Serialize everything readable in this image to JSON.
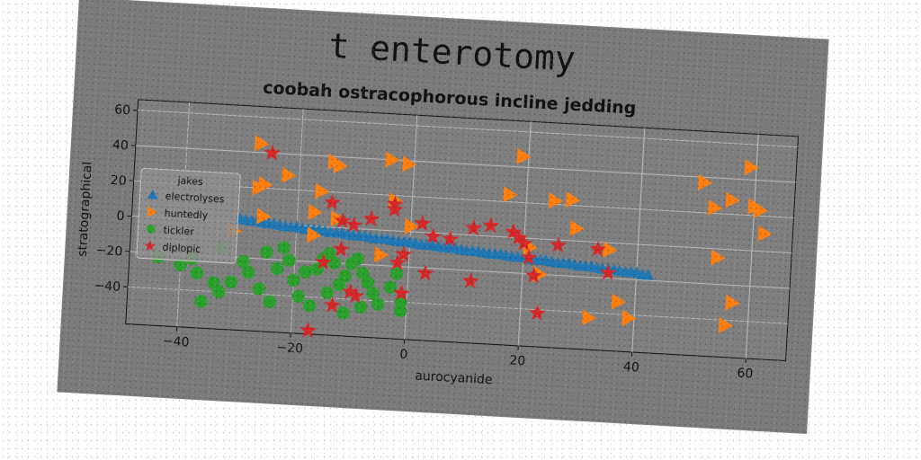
{
  "figure": {
    "title": "t enterotomy"
  },
  "chart_data": {
    "type": "scatter",
    "title": "coobah ostracophorous incline jedding",
    "xlabel": "aurocyanide",
    "ylabel": "stratographical",
    "xlim": [
      -49,
      67
    ],
    "ylim": [
      -61,
      66
    ],
    "xticks": [
      -40,
      -20,
      0,
      20,
      40,
      60
    ],
    "yticks": [
      -40,
      -20,
      0,
      20,
      40,
      60
    ],
    "grid": true,
    "legend": {
      "title": "jakes",
      "position": "center-left"
    },
    "series": [
      {
        "name": "electrolyses",
        "marker": "triangle-up",
        "color": "#1f77b4",
        "points": [
          [
            -30,
            2
          ],
          [
            -29,
            1.5
          ],
          [
            -28,
            1
          ],
          [
            -27,
            1
          ],
          [
            -26,
            0.5
          ],
          [
            -25,
            0
          ],
          [
            -24,
            0
          ],
          [
            -23,
            -0.5
          ],
          [
            -22,
            -1
          ],
          [
            -21,
            -1
          ],
          [
            -20,
            -1
          ],
          [
            -19,
            -1.5
          ],
          [
            -18,
            -2
          ],
          [
            -17,
            -2
          ],
          [
            -16,
            -2
          ],
          [
            -15,
            -2.5
          ],
          [
            -14,
            -3
          ],
          [
            -13,
            -3
          ],
          [
            -12,
            -3
          ],
          [
            -11,
            -3.5
          ],
          [
            -10,
            -4
          ],
          [
            -9,
            -4
          ],
          [
            -8,
            -4
          ],
          [
            -7,
            -4.5
          ],
          [
            -6,
            -5
          ],
          [
            -5,
            -5
          ],
          [
            -4,
            -5
          ],
          [
            -3,
            -5.5
          ],
          [
            -2,
            -6
          ],
          [
            -1,
            -6
          ],
          [
            0,
            -6
          ],
          [
            1,
            -6.5
          ],
          [
            2,
            -7
          ],
          [
            3,
            -7
          ],
          [
            4,
            -7
          ],
          [
            5,
            -7.5
          ],
          [
            6,
            -8
          ],
          [
            7,
            -8
          ],
          [
            8,
            -8
          ],
          [
            9,
            -8.5
          ],
          [
            10,
            -9
          ],
          [
            11,
            -9
          ],
          [
            12,
            -9
          ],
          [
            13,
            -9.5
          ],
          [
            14,
            -10
          ],
          [
            15,
            -10
          ],
          [
            16,
            -10
          ],
          [
            17,
            -10.5
          ],
          [
            18,
            -11
          ],
          [
            19,
            -11
          ],
          [
            20,
            -11
          ],
          [
            21,
            -11.5
          ],
          [
            22,
            -12
          ],
          [
            23,
            -12
          ],
          [
            24,
            -12
          ],
          [
            25,
            -12.5
          ],
          [
            26,
            -13
          ],
          [
            27,
            -13
          ],
          [
            28,
            -13
          ],
          [
            29,
            -13.5
          ],
          [
            30,
            -14
          ],
          [
            31,
            -14
          ],
          [
            32,
            -14
          ],
          [
            33,
            -14.5
          ],
          [
            34,
            -15
          ],
          [
            35,
            -15
          ],
          [
            36,
            -15
          ],
          [
            37,
            -15.5
          ],
          [
            38,
            -16
          ],
          [
            39,
            -16
          ],
          [
            40,
            -16
          ],
          [
            41,
            -17
          ],
          [
            42,
            -17
          ]
        ]
      },
      {
        "name": "huntedly",
        "marker": "triangle-right",
        "color": "#ff7f0e",
        "points": [
          [
            -27,
            45
          ],
          [
            -22,
            28
          ],
          [
            -26,
            22
          ],
          [
            -27,
            20
          ],
          [
            -16,
            20
          ],
          [
            -14,
            37
          ],
          [
            -13,
            35
          ],
          [
            -4,
            40
          ],
          [
            -1,
            38
          ],
          [
            -3,
            17
          ],
          [
            -13,
            5
          ],
          [
            -26,
            4
          ],
          [
            -17,
            8
          ],
          [
            -5,
            -14
          ],
          [
            19,
            46
          ],
          [
            17,
            24
          ],
          [
            25,
            22
          ],
          [
            28,
            23
          ],
          [
            29,
            7
          ],
          [
            21,
            -5
          ],
          [
            23,
            -20
          ],
          [
            35,
            -4
          ],
          [
            32,
            -43
          ],
          [
            37,
            -33
          ],
          [
            39,
            -42
          ],
          [
            51,
            37
          ],
          [
            53,
            23
          ],
          [
            56,
            28
          ],
          [
            60,
            25
          ],
          [
            59,
            47
          ],
          [
            61,
            23
          ],
          [
            62,
            10
          ],
          [
            54,
            -5
          ],
          [
            57,
            -30
          ],
          [
            56,
            -43
          ],
          [
            -31,
            -5
          ],
          [
            -17,
            -5
          ],
          [
            0,
            3
          ]
        ]
      },
      {
        "name": "tickler",
        "marker": "circle",
        "color": "#2ca02c",
        "points": [
          [
            -44,
            -22
          ],
          [
            -40,
            -26
          ],
          [
            -37,
            -30
          ],
          [
            -34,
            -35
          ],
          [
            -33,
            -40
          ],
          [
            -36,
            -46
          ],
          [
            -31,
            -34
          ],
          [
            -28,
            -28
          ],
          [
            -26,
            -37
          ],
          [
            -24,
            -44
          ],
          [
            -29,
            -22
          ],
          [
            -23,
            -25
          ],
          [
            -21,
            -20
          ],
          [
            -20,
            -31
          ],
          [
            -18,
            -26
          ],
          [
            -16,
            -24
          ],
          [
            -15,
            -18
          ],
          [
            -14,
            -15
          ],
          [
            -13,
            -20
          ],
          [
            -19,
            -40
          ],
          [
            -17,
            -45
          ],
          [
            -14,
            -37
          ],
          [
            -12,
            -32
          ],
          [
            -11,
            -27
          ],
          [
            -10,
            -20
          ],
          [
            -9,
            -17
          ],
          [
            -8,
            -25
          ],
          [
            -7,
            -30
          ],
          [
            -6,
            -36
          ],
          [
            -5,
            -42
          ],
          [
            -8,
            -44
          ],
          [
            -11,
            -48
          ],
          [
            -2,
            -24
          ],
          [
            -3,
            -32
          ],
          [
            -1,
            -40
          ],
          [
            -1,
            -45
          ],
          [
            -22,
            -13
          ],
          [
            -25,
            -16
          ],
          [
            -33,
            -15
          ],
          [
            -38,
            -22
          ]
        ]
      },
      {
        "name": "diplopic",
        "marker": "star",
        "color": "#d62728",
        "points": [
          [
            -25,
            40
          ],
          [
            -14,
            14
          ],
          [
            -12,
            4
          ],
          [
            -10,
            2
          ],
          [
            -7,
            6
          ],
          [
            -3,
            12
          ],
          [
            -3,
            15
          ],
          [
            -2,
            -18
          ],
          [
            -1,
            -13
          ],
          [
            2,
            5
          ],
          [
            4,
            -2
          ],
          [
            7,
            -3
          ],
          [
            11,
            4
          ],
          [
            14,
            6
          ],
          [
            18,
            3
          ],
          [
            19,
            0
          ],
          [
            20,
            -3
          ],
          [
            21,
            -11
          ],
          [
            22,
            -21
          ],
          [
            26,
            -3
          ],
          [
            33,
            -4
          ],
          [
            35,
            -17
          ],
          [
            23,
            -42
          ],
          [
            -9,
            -38
          ],
          [
            -10,
            -36
          ],
          [
            -13,
            -44
          ],
          [
            -15,
            -20
          ],
          [
            -12,
            -12
          ],
          [
            -17,
            -59
          ],
          [
            -1,
            -35
          ],
          [
            3,
            -23
          ],
          [
            11,
            -26
          ]
        ]
      }
    ]
  }
}
